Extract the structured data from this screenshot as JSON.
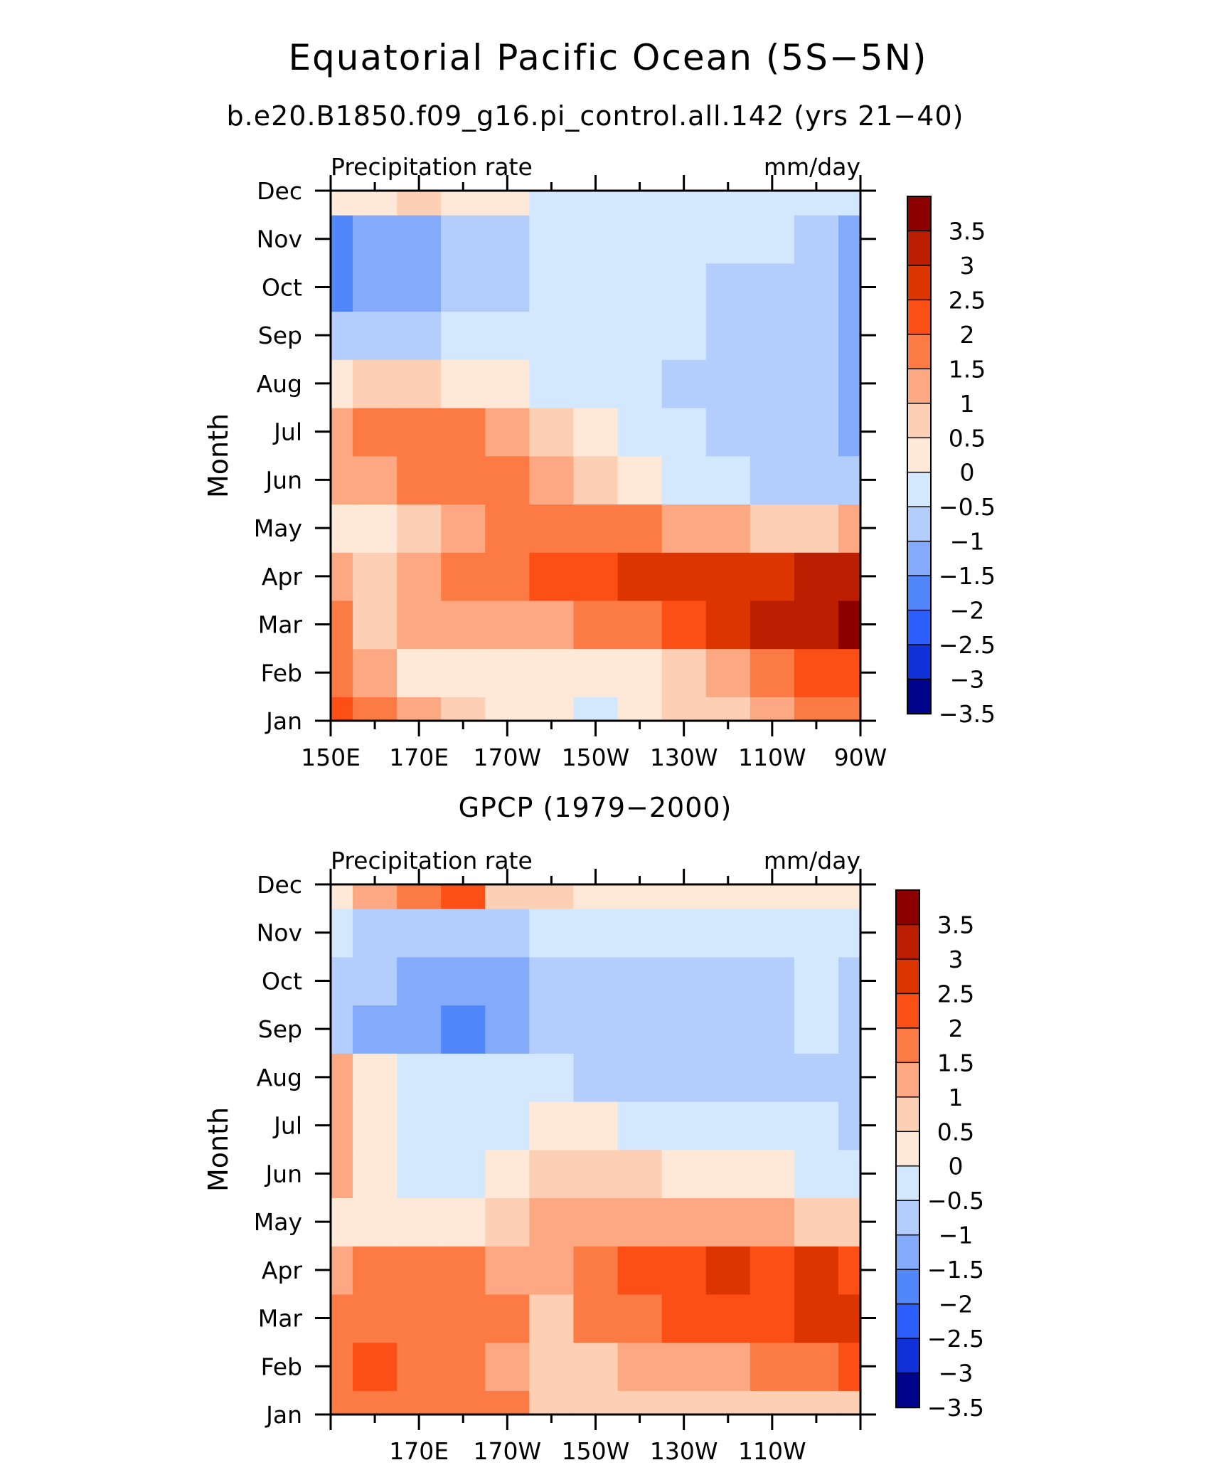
{
  "figure": {
    "title": "Equatorial Pacific Ocean (5S−5N)",
    "subtitle": "b.e20.B1850.f09_g16.pi_control.all.142 (yrs 21−40)"
  },
  "colorbar": {
    "levels": [
      "3.5",
      "3",
      "2.5",
      "2",
      "1.5",
      "1",
      "0.5",
      "0",
      "−0.5",
      "−1",
      "−1.5",
      "−2",
      "−2.5",
      "−3",
      "−3.5"
    ],
    "colors_top_to_bottom": [
      "#8c0000",
      "#bb1e00",
      "#dc3500",
      "#fc4f16",
      "#fc7a44",
      "#fca983",
      "#fdcfb4",
      "#fee9d8",
      "#d4e8fd",
      "#b3cefd",
      "#84aafc",
      "#5287fc",
      "#2c5efc",
      "#0f31d7",
      "#00038c"
    ]
  },
  "chart_data": [
    {
      "type": "heatmap",
      "title": "",
      "left_label": "Precipitation rate",
      "right_label": "mm/day",
      "ylabel": "Month",
      "xlabel": "",
      "x_tick_labels": [
        "150E",
        "170E",
        "170W",
        "150W",
        "130W",
        "110W",
        "90W"
      ],
      "x_values_deg_east": [
        150,
        170,
        190,
        210,
        230,
        250,
        270
      ],
      "xlim": [
        150,
        270
      ],
      "y_tick_labels": [
        "Jan",
        "Feb",
        "Mar",
        "Apr",
        "May",
        "Jun",
        "Jul",
        "Aug",
        "Sep",
        "Oct",
        "Nov",
        "Dec"
      ],
      "units": "mm/day",
      "z": [
        [
          1.8,
          1.3,
          0.6,
          0.2,
          -0.3,
          -0.5,
          -0.6,
          -0.4,
          0.0,
          0.4,
          0.7,
          1.0,
          1.1
        ],
        [
          1.3,
          0.7,
          -0.1,
          -0.3,
          -0.4,
          -0.5,
          -0.4,
          -0.2,
          0.3,
          0.7,
          1.2,
          1.7,
          1.9
        ],
        [
          1.0,
          0.3,
          0.5,
          0.6,
          0.7,
          0.9,
          1.1,
          1.4,
          1.7,
          2.0,
          2.5,
          2.8,
          3.1
        ],
        [
          0.7,
          0.2,
          0.7,
          1.1,
          1.3,
          1.6,
          1.9,
          2.2,
          2.2,
          2.3,
          2.4,
          2.5,
          2.7
        ],
        [
          -0.2,
          -0.3,
          0.4,
          0.9,
          1.1,
          1.1,
          1.2,
          1.1,
          0.8,
          0.6,
          0.4,
          0.3,
          0.5
        ],
        [
          0.6,
          0.6,
          1.0,
          1.3,
          1.1,
          0.7,
          0.3,
          -0.4,
          -0.8,
          -1.0,
          -1.1,
          -1.2,
          -1.3
        ],
        [
          0.8,
          1.0,
          1.3,
          1.1,
          0.9,
          0.2,
          -0.3,
          -0.7,
          -1.0,
          -1.2,
          -1.4,
          -1.5,
          -1.6
        ],
        [
          -0.3,
          0.0,
          0.2,
          -0.1,
          -0.4,
          -0.7,
          -0.9,
          -1.0,
          -1.1,
          -1.3,
          -1.4,
          -1.5,
          -1.7
        ],
        [
          -1.3,
          -1.2,
          -1.1,
          -1.0,
          -1.0,
          -0.9,
          -0.8,
          -0.9,
          -1.0,
          -1.4,
          -1.5,
          -1.5,
          -1.8
        ],
        [
          -2.1,
          -1.8,
          -1.6,
          -1.4,
          -1.2,
          -1.0,
          -0.8,
          -0.8,
          -0.9,
          -1.2,
          -1.5,
          -1.5,
          -1.9
        ],
        [
          -2.1,
          -1.9,
          -1.7,
          -1.3,
          -1.2,
          -0.9,
          -0.7,
          -0.8,
          -0.8,
          -0.9,
          -1.0,
          -1.3,
          -1.6
        ],
        [
          -0.4,
          -0.2,
          0.2,
          -0.3,
          -0.5,
          -0.7,
          -0.8,
          -0.8,
          -0.8,
          -0.8,
          -0.9,
          -0.9,
          -1.0
        ]
      ]
    },
    {
      "type": "heatmap",
      "title": "GPCP (1979−2000)",
      "left_label": "Precipitation rate",
      "right_label": "mm/day",
      "ylabel": "Month",
      "xlabel": "",
      "x_tick_labels": [
        "170E",
        "170W",
        "150W",
        "130W",
        "110W"
      ],
      "x_values_deg_east": [
        170,
        190,
        210,
        230,
        250
      ],
      "xlim": [
        150,
        270
      ],
      "y_tick_labels": [
        "Jan",
        "Feb",
        "Mar",
        "Apr",
        "May",
        "Jun",
        "Jul",
        "Aug",
        "Sep",
        "Oct",
        "Nov",
        "Dec"
      ],
      "units": "mm/day",
      "z": [
        [
          1.1,
          1.4,
          1.3,
          1.2,
          1.1,
          0.2,
          0.1,
          0.2,
          0.2,
          0.1,
          0.2,
          0.2,
          0.3
        ],
        [
          1.3,
          1.6,
          1.1,
          1.3,
          0.9,
          0.3,
          0.4,
          0.7,
          0.8,
          0.9,
          1.0,
          1.1,
          1.5
        ],
        [
          1.2,
          1.4,
          1.2,
          1.4,
          1.2,
          0.4,
          1.0,
          1.3,
          1.6,
          1.8,
          1.9,
          2.1,
          2.0
        ],
        [
          0.5,
          1.2,
          1.3,
          1.2,
          0.9,
          0.6,
          1.2,
          1.6,
          1.8,
          2.1,
          1.9,
          2.1,
          1.7
        ],
        [
          -0.4,
          -0.3,
          -0.3,
          -0.4,
          0.3,
          0.6,
          0.8,
          0.8,
          0.7,
          0.6,
          0.5,
          0.3,
          0.0
        ],
        [
          0.6,
          -0.2,
          -0.7,
          -0.9,
          -0.3,
          0.2,
          0.2,
          0.1,
          -0.1,
          -0.3,
          -0.5,
          -0.6,
          -0.6
        ],
        [
          0.6,
          -0.3,
          -0.8,
          -0.9,
          -0.8,
          -0.5,
          -0.4,
          -0.6,
          -0.8,
          -0.8,
          -0.9,
          -1.0,
          -1.3
        ],
        [
          0.6,
          -0.4,
          -0.9,
          -1.0,
          -1.0,
          -1.0,
          -1.1,
          -1.2,
          -1.2,
          -1.2,
          -1.1,
          -1.1,
          -1.3
        ],
        [
          -1.2,
          -1.6,
          -1.7,
          -2.1,
          -1.6,
          -1.2,
          -1.2,
          -1.3,
          -1.3,
          -1.3,
          -1.1,
          -1.0,
          -1.3
        ],
        [
          -1.1,
          -1.3,
          -1.6,
          -1.9,
          -1.6,
          -1.1,
          -1.1,
          -1.3,
          -1.3,
          -1.2,
          -1.1,
          -1.0,
          -1.3
        ],
        [
          -0.8,
          -1.1,
          -1.1,
          -1.2,
          -1.1,
          -0.9,
          -0.8,
          -0.8,
          -0.7,
          -0.7,
          -0.6,
          -0.7,
          -0.9
        ],
        [
          -0.2,
          0.6,
          1.1,
          1.5,
          0.4,
          0.1,
          -0.5,
          -0.5,
          -0.5,
          -0.4,
          -0.3,
          -0.4,
          -0.5
        ]
      ]
    }
  ]
}
